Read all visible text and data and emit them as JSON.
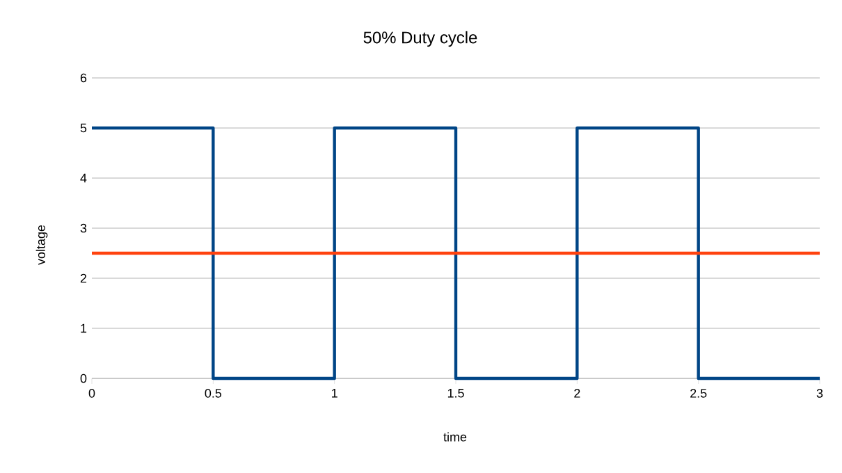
{
  "chart_data": {
    "type": "line",
    "title": "50% Duty cycle",
    "xlabel": "time",
    "ylabel": "voltage",
    "xlim": [
      0,
      3
    ],
    "ylim": [
      0,
      6
    ],
    "xticks": [
      0,
      0.5,
      1,
      1.5,
      2,
      2.5,
      3
    ],
    "yticks": [
      0,
      1,
      2,
      3,
      4,
      5,
      6
    ],
    "grid": "y",
    "line_style": "solid",
    "marker": "none",
    "series": [
      {
        "color": "#004586",
        "x": [
          0,
          0.5,
          0.5,
          1,
          1,
          1.5,
          1.5,
          2,
          2,
          2.5,
          2.5,
          3
        ],
        "values": [
          5,
          5,
          0,
          0,
          5,
          5,
          0,
          0,
          5,
          5,
          0,
          0
        ]
      },
      {
        "color": "#ff420e",
        "x": [
          0,
          3
        ],
        "values": [
          2.5,
          2.5
        ]
      }
    ]
  }
}
